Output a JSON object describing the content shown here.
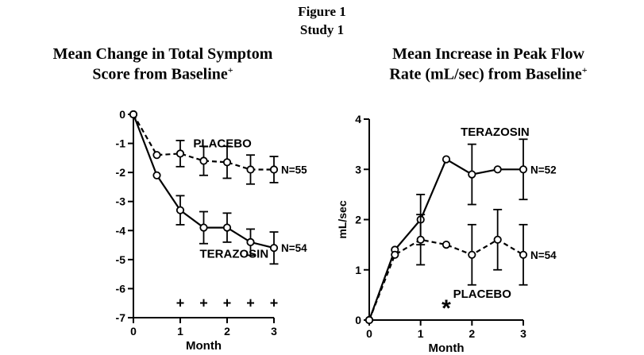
{
  "figure": {
    "title": "Figure 1",
    "subtitle": "Study 1"
  },
  "chart_data": [
    {
      "type": "line",
      "title": "Mean Change in Total Symptom Score from Baseline+",
      "title_line1": "Mean Change in Total Symptom",
      "title_line2": "Score from Baseline",
      "title_sup": "+",
      "xlabel": "Month",
      "ylabel": "",
      "xlim": [
        0,
        3
      ],
      "ylim": [
        -7,
        0
      ],
      "xticks": [
        0,
        1,
        2,
        3
      ],
      "yticks": [
        0,
        -1,
        -2,
        -3,
        -4,
        -5,
        -6,
        -7
      ],
      "grid": false,
      "line_color": "#000000",
      "x": [
        0,
        0.5,
        1,
        1.5,
        2,
        2.5,
        3
      ],
      "series": [
        {
          "name": "PLACEBO",
          "end_label": "N=55",
          "line": "dashed",
          "marker": "open-circle",
          "values": [
            0,
            -1.4,
            -1.35,
            -1.6,
            -1.65,
            -1.9,
            -1.9
          ],
          "err": [
            0,
            0,
            0.45,
            0.5,
            0.55,
            0.5,
            0.45
          ],
          "name_pos": {
            "x": 1.9,
            "y": -1.0
          }
        },
        {
          "name": "TERAZOSIN",
          "end_label": "N=54",
          "line": "solid",
          "marker": "open-circle",
          "values": [
            0,
            -2.1,
            -3.3,
            -3.9,
            -3.9,
            -4.4,
            -4.6
          ],
          "err": [
            0,
            0,
            0.5,
            0.55,
            0.5,
            0.45,
            0.55
          ],
          "name_pos": {
            "x": 2.15,
            "y": -4.8
          }
        }
      ],
      "annotations": [
        {
          "text": "+",
          "x": 1,
          "y": -6.5
        },
        {
          "text": "+",
          "x": 1.5,
          "y": -6.5
        },
        {
          "text": "+",
          "x": 2,
          "y": -6.5
        },
        {
          "text": "+",
          "x": 2.5,
          "y": -6.5
        },
        {
          "text": "+",
          "x": 3,
          "y": -6.5
        }
      ]
    },
    {
      "type": "line",
      "title": "Mean Increase in Peak Flow Rate (mL/sec) from Baseline+",
      "title_line1": "Mean Increase in Peak Flow",
      "title_line2": "Rate (mL/sec) from Baseline",
      "title_sup": "+",
      "xlabel": "Month",
      "ylabel": "mL/sec",
      "xlim": [
        0,
        3
      ],
      "ylim": [
        0,
        4
      ],
      "xticks": [
        0,
        1,
        2,
        3
      ],
      "yticks": [
        0,
        1,
        2,
        3,
        4
      ],
      "grid": false,
      "line_color": "#000000",
      "x": [
        0,
        0.5,
        1,
        1.5,
        2,
        2.5,
        3
      ],
      "series": [
        {
          "name": "TERAZOSIN",
          "end_label": "N=52",
          "line": "solid",
          "marker": "open-circle",
          "values": [
            0,
            1.4,
            2.0,
            3.2,
            2.9,
            3.0,
            3.0
          ],
          "err": [
            0,
            0,
            0.5,
            0,
            0.6,
            0,
            0.6
          ],
          "name_pos": {
            "x": 2.45,
            "y": 3.75
          }
        },
        {
          "name": "PLACEBO",
          "end_label": "N=54",
          "line": "dashed",
          "marker": "open-circle",
          "values": [
            0,
            1.3,
            1.6,
            1.5,
            1.3,
            1.6,
            1.3
          ],
          "err": [
            0,
            0,
            0.5,
            0,
            0.6,
            0.6,
            0.6
          ],
          "name_pos": {
            "x": 2.2,
            "y": 0.52
          }
        }
      ],
      "annotations": [
        {
          "text": "*",
          "x": 1.5,
          "y": 0.35
        }
      ]
    }
  ]
}
